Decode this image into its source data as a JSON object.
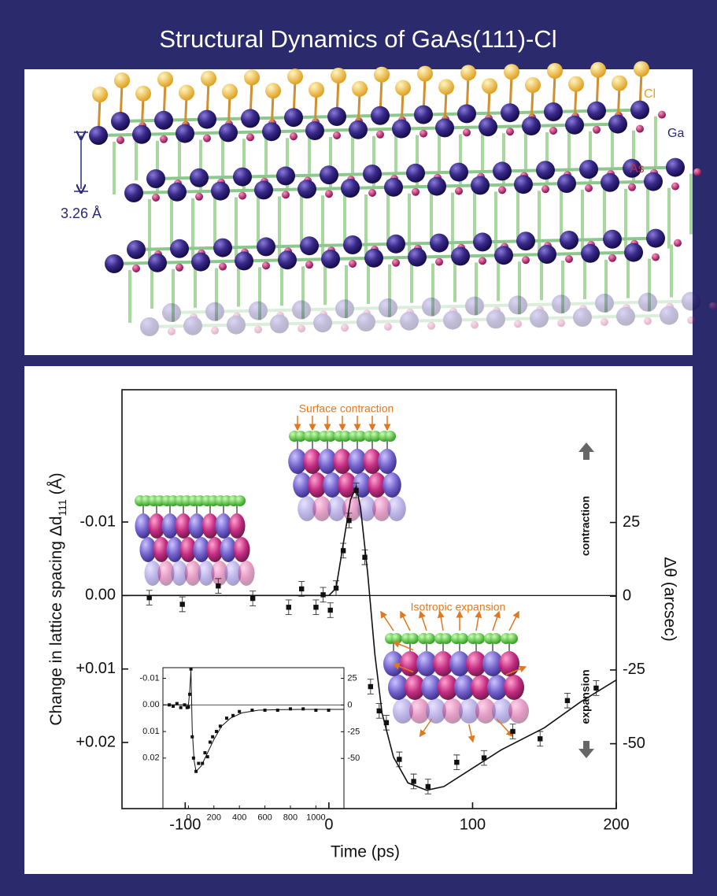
{
  "title": "Structural Dynamics of GaAs(111)-Cl",
  "structure": {
    "labels": {
      "cl": "Cl",
      "ga": "Ga",
      "as": "As",
      "spacing": "3.26 Å"
    }
  },
  "chart_data": [
    {
      "type": "scatter",
      "xlabel": "Time  (ps)",
      "ylabel": {
        "text": "Change in lattice spacing  Δd",
        "sub": "111",
        "unit": " (Å)"
      },
      "y2label": "Δθ (arcsec)",
      "annotations": {
        "surface": "Surface contraction",
        "isotropic": "Isotropic expansion",
        "contraction": "contraction",
        "expansion": "expansion"
      },
      "xlim": [
        -144,
        200
      ],
      "xticks": [
        -100,
        0,
        100,
        200
      ],
      "ylim": [
        0.029,
        -0.028
      ],
      "yticks": [
        -0.01,
        {
          "value": 0,
          "label": "0.00"
        },
        {
          "value": 0.01,
          "label": "+0.01"
        },
        {
          "value": 0.02,
          "label": "+0.02"
        }
      ],
      "y2lim": [
        -72,
        70
      ],
      "y2ticks": [
        25,
        0,
        -25,
        -50
      ],
      "zero_line": true,
      "series": [
        {
          "type": "scatter",
          "color": "#111111",
          "x": [
            -125,
            -102,
            -77,
            -53,
            -28,
            -19,
            -9,
            -4,
            1,
            5,
            10,
            14,
            19,
            25,
            29,
            35,
            40,
            49,
            59,
            69,
            89,
            108,
            128,
            147,
            166,
            186
          ],
          "values": [
            0.0003,
            0.0012,
            -0.0013,
            0.0004,
            0.0016,
            -0.0009,
            0.0016,
            -0.0001,
            0.002,
            -0.001,
            -0.0061,
            -0.0102,
            -0.0143,
            -0.0052,
            0.0124,
            0.0157,
            0.0173,
            0.0223,
            0.0253,
            0.026,
            0.0227,
            0.0221,
            0.0185,
            0.0195,
            0.0143,
            0.0126
          ],
          "errors": [
            0.001,
            0.001,
            0.001,
            0.001,
            0.001,
            0.001,
            0.001,
            0.001,
            0.001,
            0.001,
            0.001,
            0.001,
            0.001,
            0.001,
            0.001,
            0.001,
            0.001,
            0.001,
            0.001,
            0.001,
            0.001,
            0.001,
            0.001,
            0.001,
            0.001,
            0.001
          ]
        },
        {
          "type": "line",
          "color": "#111111",
          "x": [
            -144,
            0,
            5,
            10,
            15,
            19,
            22,
            27,
            32,
            37,
            45,
            55,
            68,
            80,
            100,
            120,
            150,
            175,
            200
          ],
          "values": [
            0,
            0,
            -0.001,
            -0.007,
            -0.013,
            -0.0148,
            -0.012,
            -0.003,
            0.008,
            0.016,
            0.022,
            0.0255,
            0.0265,
            0.026,
            0.0235,
            0.021,
            0.018,
            0.0145,
            0.0115
          ]
        }
      ]
    },
    {
      "type": "scatter",
      "xlim": [
        -200,
        1220
      ],
      "xticks": [
        0,
        200,
        400,
        600,
        800,
        1000
      ],
      "ylim": [
        0.039,
        -0.014
      ],
      "yticks": [
        -0.01,
        {
          "value": 0,
          "label": "0.00"
        },
        0.01,
        0.02
      ],
      "y2lim": [
        -97,
        35
      ],
      "y2ticks": [
        25,
        0,
        -25,
        -50
      ],
      "zero_line": true,
      "series": [
        {
          "type": "scatter",
          "color": "#111111",
          "x": [
            -150,
            -120,
            -90,
            -60,
            -30,
            -10,
            0,
            10,
            20,
            30,
            40,
            60,
            80,
            110,
            130,
            150,
            170,
            190,
            220,
            250,
            300,
            350,
            400,
            500,
            600,
            700,
            800,
            900,
            1000,
            1100
          ],
          "values": [
            0,
            0.0005,
            -0.0005,
            0.001,
            0,
            0.001,
            0.0008,
            -0.004,
            -0.0135,
            0.012,
            0.02,
            0.025,
            0.022,
            0.022,
            0.018,
            0.0195,
            0.014,
            0.012,
            0.01,
            0.008,
            0.005,
            0.004,
            0.0025,
            0.002,
            0.002,
            0.002,
            0.0015,
            0.0015,
            0.002,
            0.002
          ]
        },
        {
          "type": "line",
          "color": "#111111",
          "x": [
            -200,
            0,
            10,
            20,
            30,
            45,
            60,
            100,
            150,
            200,
            260,
            330,
            420,
            550,
            700,
            900,
            1220
          ],
          "values": [
            0,
            0,
            -0.005,
            -0.013,
            0.01,
            0.021,
            0.025,
            0.023,
            0.018,
            0.013,
            0.008,
            0.005,
            0.003,
            0.002,
            0.0018,
            0.0017,
            0.0017
          ]
        }
      ]
    }
  ]
}
